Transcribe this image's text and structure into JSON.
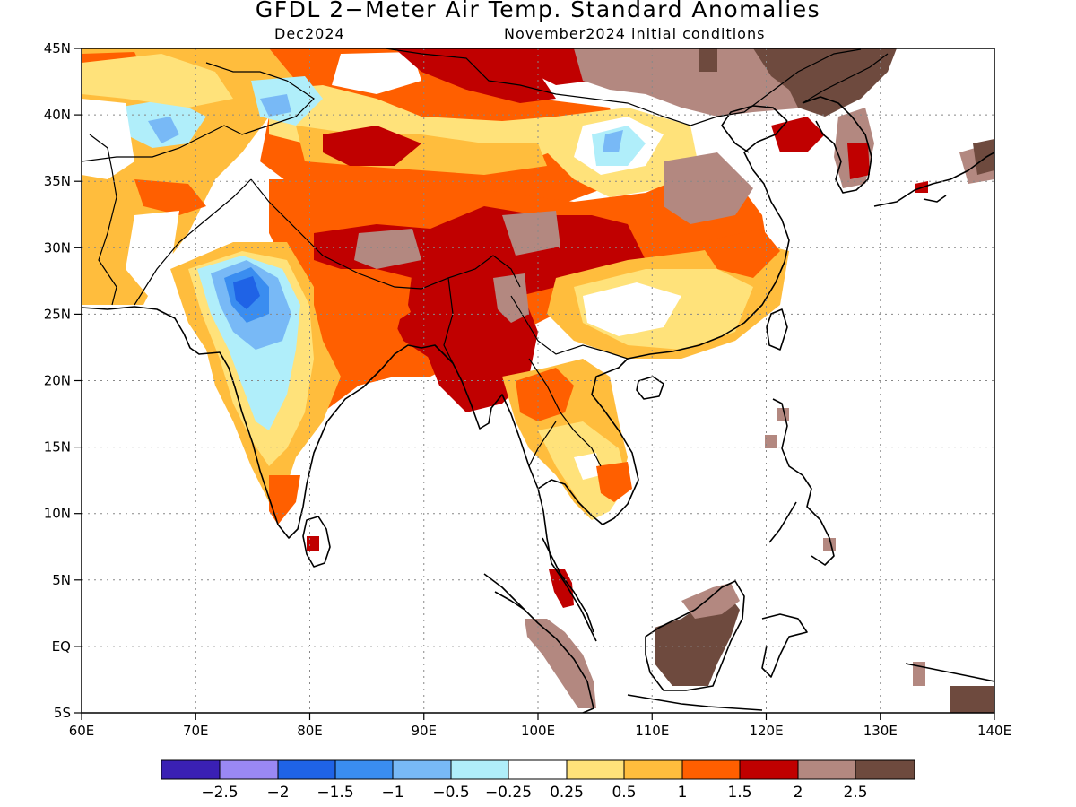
{
  "title": "GFDL 2−Meter Air Temp. Standard Anomalies",
  "valid_month": "Dec2024",
  "init_conditions": "November2024 initial conditions",
  "axes": {
    "x_ticks": [
      "60E",
      "70E",
      "80E",
      "90E",
      "100E",
      "110E",
      "120E",
      "130E",
      "140E"
    ],
    "y_ticks": [
      "45N",
      "40N",
      "35N",
      "30N",
      "25N",
      "20N",
      "15N",
      "10N",
      "5N",
      "EQ",
      "5S"
    ],
    "lon_range": [
      60,
      140
    ],
    "lat_range": [
      -5,
      45
    ],
    "grid": "dotted"
  },
  "colorbar": {
    "colors": [
      "#3a20b4",
      "#9a88f4",
      "#1f63e6",
      "#3a8df0",
      "#78b9f6",
      "#b0eefa",
      "#ffffff",
      "#ffe27a",
      "#ffbd3d",
      "#ff5f00",
      "#c00000",
      "#b38880",
      "#6e4a3e"
    ],
    "labels": [
      "−2.5",
      "−2",
      "−1.5",
      "−1",
      "−0.5",
      "−0.25",
      "0.25",
      "0.5",
      "1",
      "1.5",
      "2",
      "2.5"
    ]
  },
  "chart_data": {
    "type": "heatmap",
    "title": "GFDL 2−Meter Air Temp. Standard Anomalies",
    "xlabel": "",
    "ylabel": "",
    "xlim": [
      60,
      140
    ],
    "ylim": [
      -5,
      45
    ],
    "regions": [
      {
        "lon": [
          60,
          68
        ],
        "lat": [
          26,
          45
        ],
        "value": 0.75
      },
      {
        "lon": [
          66,
          78
        ],
        "lat": [
          34,
          42
        ],
        "value": -0.4
      },
      {
        "lon": [
          64,
          74
        ],
        "lat": [
          30,
          36
        ],
        "value": 1.0
      },
      {
        "lon": [
          78,
          95
        ],
        "lat": [
          32,
          45
        ],
        "value": 1.25
      },
      {
        "lon": [
          88,
          104
        ],
        "lat": [
          40,
          45
        ],
        "value": 1.75
      },
      {
        "lon": [
          104,
          126
        ],
        "lat": [
          38,
          45
        ],
        "value": 2.25
      },
      {
        "lon": [
          126,
          135
        ],
        "lat": [
          40,
          45
        ],
        "value": 2.75
      },
      {
        "lon": [
          84,
          104
        ],
        "lat": [
          28,
          36
        ],
        "value": 1.6
      },
      {
        "lon": [
          105,
          118
        ],
        "lat": [
          30,
          37
        ],
        "value": 2.25
      },
      {
        "lon": [
          102,
          110
        ],
        "lat": [
          34,
          38
        ],
        "value": -0.3
      },
      {
        "lon": [
          70,
          80
        ],
        "lat": [
          22,
          29
        ],
        "value": -0.9
      },
      {
        "lon": [
          73,
          79
        ],
        "lat": [
          15,
          22
        ],
        "value": -0.35
      },
      {
        "lon": [
          80,
          90
        ],
        "lat": [
          19,
          28
        ],
        "value": 1.25
      },
      {
        "lon": [
          88,
          104
        ],
        "lat": [
          18,
          28
        ],
        "value": 1.75
      },
      {
        "lon": [
          104,
          118
        ],
        "lat": [
          22,
          28
        ],
        "value": 0.6
      },
      {
        "lon": [
          97,
          106
        ],
        "lat": [
          12,
          20
        ],
        "value": 0.75
      },
      {
        "lon": [
          105,
          110
        ],
        "lat": [
          9,
          15
        ],
        "value": 0.6
      },
      {
        "lon": [
          102,
          104
        ],
        "lat": [
          1,
          7
        ],
        "value": 1.75
      },
      {
        "lon": [
          99,
          106
        ],
        "lat": [
          -4,
          3
        ],
        "value": 2.25
      },
      {
        "lon": [
          110,
          118
        ],
        "lat": [
          -3,
          4
        ],
        "value": 2.75
      },
      {
        "lon": [
          126,
          129
        ],
        "lat": [
          34,
          39
        ],
        "value": 1.75
      },
      {
        "lon": [
          136,
          140
        ],
        "lat": [
          33,
          37
        ],
        "value": 2.5
      },
      {
        "lon": [
          135,
          140
        ],
        "lat": [
          -5,
          -3
        ],
        "value": 2.75
      }
    ]
  }
}
